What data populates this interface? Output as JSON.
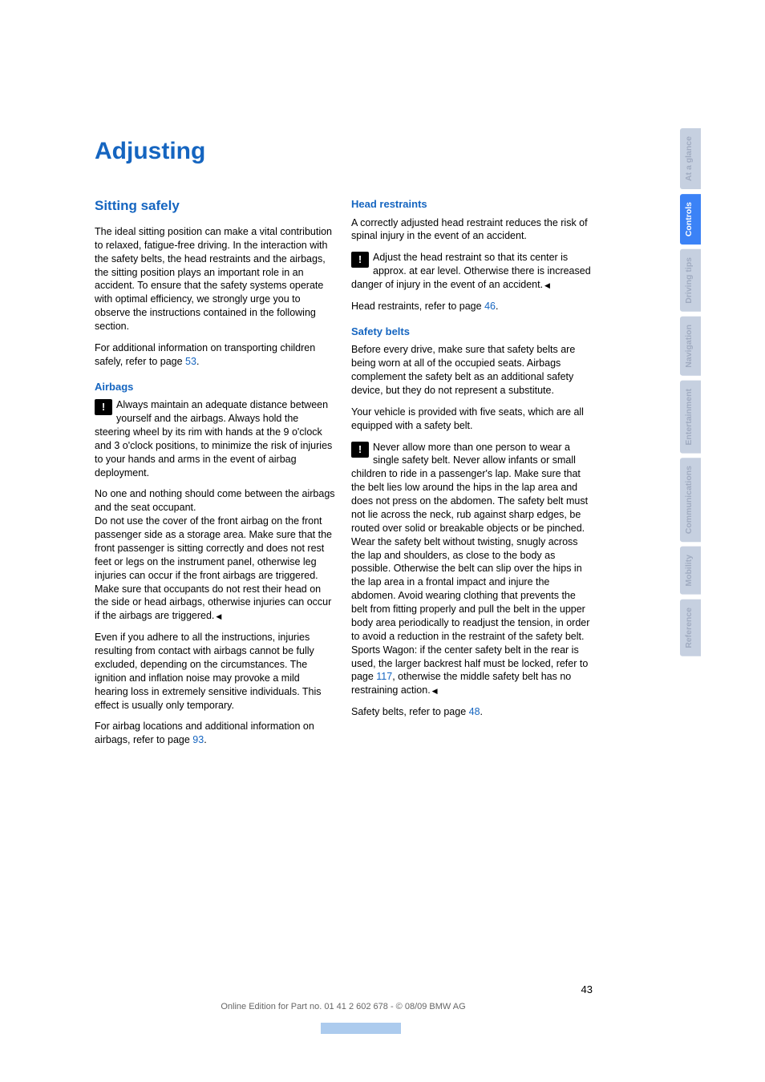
{
  "title": "Adjusting",
  "left": {
    "section_title": "Sitting safely",
    "intro": "The ideal sitting position can make a vital contribution to relaxed, fatigue-free driving. In the interaction with the safety belts, the head restraints and the airbags, the sitting position plays an important role in an accident. To ensure that the safety systems operate with optimal efficiency, we strongly urge you to observe the instructions contained in the following section.",
    "additional_pre": "For additional information on transporting children safely, refer to page ",
    "additional_link": "53",
    "additional_post": ".",
    "airbags_title": "Airbags",
    "airbags_warn": "Always maintain an adequate distance between yourself and the airbags. Always hold the steering wheel by its rim with hands at the 9 o'clock and 3 o'clock positions, to minimize the risk of injuries to your hands and arms in the event of airbag deployment.",
    "airbags_p2": "No one and nothing should come between the airbags and the seat occupant.",
    "airbags_p3": "Do not use the cover of the front airbag on the front passenger side as a storage area. Make sure that the front passenger is sitting correctly and does not rest feet or legs on the instrument panel, otherwise leg injuries can occur if the front airbags are triggered.",
    "airbags_p4": "Make sure that occupants do not rest their head on the side or head airbags, otherwise injuries can occur if the airbags are triggered.",
    "airbags_p5": "Even if you adhere to all the instructions, injuries resulting from contact with airbags cannot be fully excluded, depending on the circumstances. The ignition and inflation noise may provoke a mild hearing loss in extremely sensitive individuals. This effect is usually only temporary.",
    "airbags_ref_pre": "For airbag locations and additional information on airbags, refer to page ",
    "airbags_ref_link": "93",
    "airbags_ref_post": "."
  },
  "right": {
    "head_title": "Head restraints",
    "head_p1": "A correctly adjusted head restraint reduces the risk of spinal injury in the event of an accident.",
    "head_warn": "Adjust the head restraint so that its center is approx. at ear level. Otherwise there is increased danger of injury in the event of an accident.",
    "head_ref_pre": "Head restraints, refer to page ",
    "head_ref_link": "46",
    "head_ref_post": ".",
    "belts_title": "Safety belts",
    "belts_p1": "Before every drive, make sure that safety belts are being worn at all of the occupied seats. Airbags complement the safety belt as an additional safety device, but they do not represent a substitute.",
    "belts_p2": "Your vehicle is provided with five seats, which are all equipped with a safety belt.",
    "belts_warn_pre": "Never allow more than one person to wear a single safety belt. Never allow infants or small children to ride in a passenger's lap. Make sure that the belt lies low around the hips in the lap area and does not press on the abdomen. The safety belt must not lie across the neck, rub against sharp edges, be routed over solid or breakable objects or be pinched. Wear the safety belt without twisting, snugly across the lap and shoulders, as close to the body as possible. Otherwise the belt can slip over the hips in the lap area in a frontal impact and injure the abdomen. Avoid wearing clothing that prevents the belt from fitting properly and pull the belt in the upper body area periodically to readjust the tension, in order to avoid a reduction in the restraint of the safety belt. Sports Wagon: if the center safety belt in the rear is used, the larger backrest half must be locked, refer to page ",
    "belts_warn_link": "117",
    "belts_warn_post": ", otherwise the middle safety belt has no restraining action.",
    "belts_ref_pre": "Safety belts, refer to page ",
    "belts_ref_link": "48",
    "belts_ref_post": "."
  },
  "tabs": [
    {
      "label": "At a glance",
      "active": false
    },
    {
      "label": "Controls",
      "active": true
    },
    {
      "label": "Driving tips",
      "active": false
    },
    {
      "label": "Navigation",
      "active": false
    },
    {
      "label": "Entertainment",
      "active": false
    },
    {
      "label": "Communications",
      "active": false
    },
    {
      "label": "Mobility",
      "active": false
    },
    {
      "label": "Reference",
      "active": false
    }
  ],
  "page_number": "43",
  "footer": "Online Edition for Part no. 01 41 2 602 678 - © 08/09 BMW AG",
  "warning_glyph": "!"
}
